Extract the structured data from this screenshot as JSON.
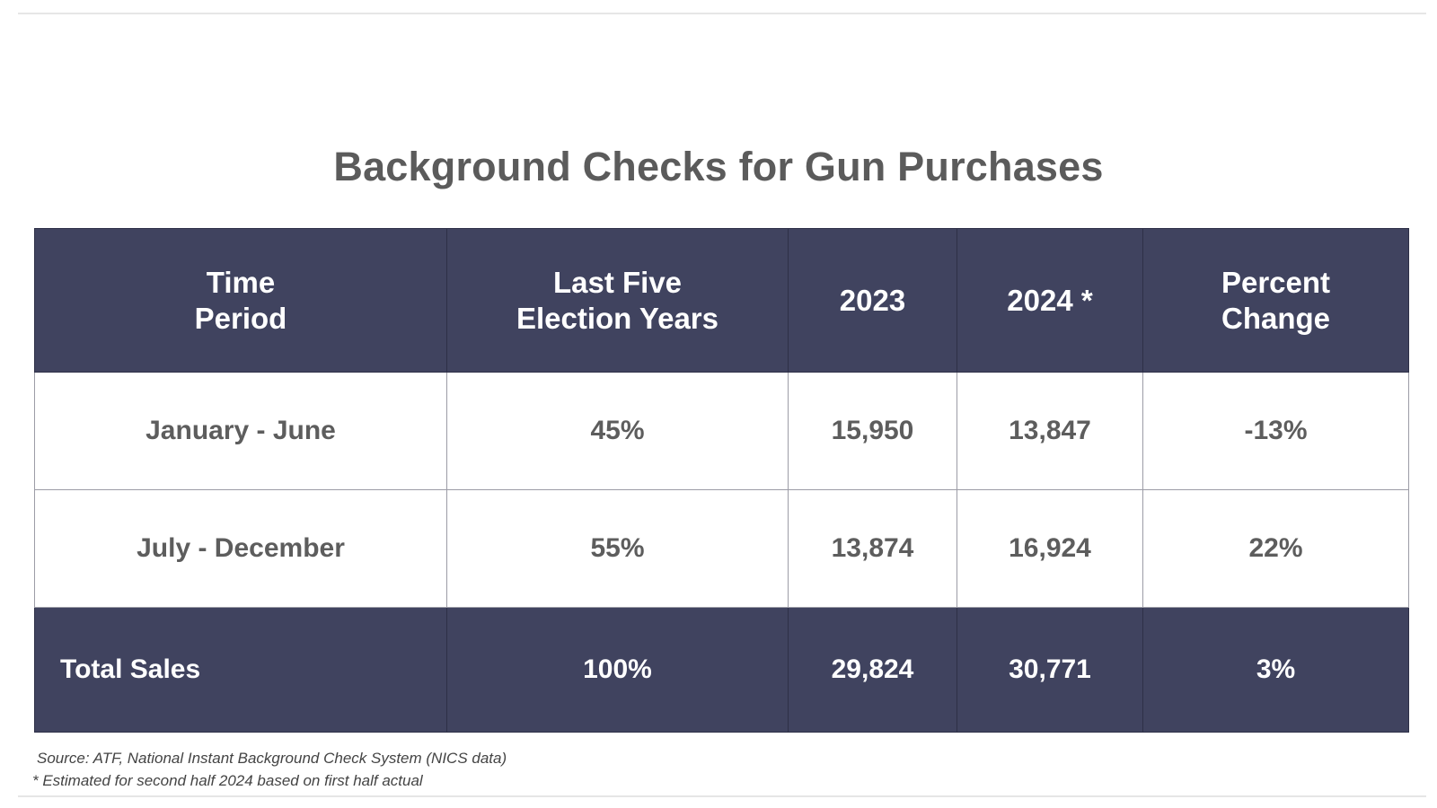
{
  "title": "Background Checks for Gun Purchases",
  "table": {
    "headers": [
      {
        "line1": "Time",
        "line2": "Period"
      },
      {
        "line1": "Last Five",
        "line2": "Election Years"
      },
      {
        "line1": "2023",
        "line2": ""
      },
      {
        "line1": "2024 *",
        "line2": ""
      },
      {
        "line1": "Percent",
        "line2": "Change"
      }
    ],
    "rows": [
      {
        "period": "January - June",
        "last_five": "45%",
        "y2023": "15,950",
        "y2024": "13,847",
        "change": "-13%"
      },
      {
        "period": "July - December",
        "last_five": "55%",
        "y2023": "13,874",
        "y2024": "16,924",
        "change": "22%"
      }
    ],
    "total": {
      "period": "Total Sales",
      "last_five": "100%",
      "y2023": "29,824",
      "y2024": "30,771",
      "change": "3%"
    }
  },
  "notes": {
    "source": "Source: ATF, National Instant Background Check System (NICS data)",
    "estimate": "* Estimated for second half 2024 based on first half actual"
  },
  "colors": {
    "header_bg": "#40435f",
    "header_text": "#ffffff",
    "body_text": "#5d5d5d",
    "title_text": "#5b5b5b"
  }
}
